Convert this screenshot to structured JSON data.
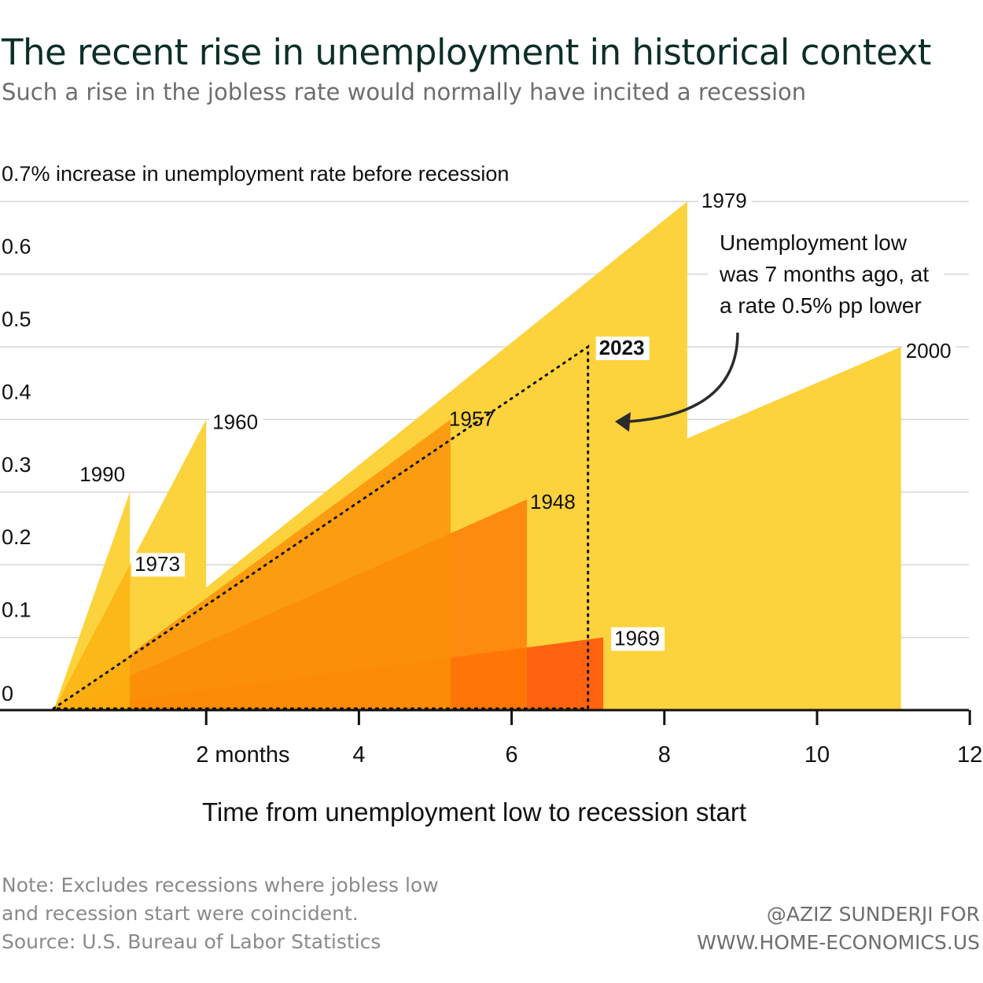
{
  "header": {
    "title": "The recent rise in unemployment in historical context",
    "subtitle": "Such a rise in the jobless rate would normally have incited a recession"
  },
  "chart_data": {
    "type": "area",
    "title": "The recent rise in unemployment in historical context",
    "subtitle": "Such a rise in the jobless rate would normally have incited a recession",
    "ylabel": "0.7% increase in unemployment rate before recession",
    "xlabel": "Time from unemployment low to recession start",
    "ylim": [
      0,
      0.7
    ],
    "xlim": [
      -0.8,
      12
    ],
    "yticks": [
      {
        "value": 0,
        "label": "0"
      },
      {
        "value": 0.1,
        "label": "0.1"
      },
      {
        "value": 0.2,
        "label": "0.2"
      },
      {
        "value": 0.3,
        "label": "0.3"
      },
      {
        "value": 0.4,
        "label": "0.4"
      },
      {
        "value": 0.5,
        "label": "0.5"
      },
      {
        "value": 0.6,
        "label": "0.6"
      },
      {
        "value": 0.7,
        "label": "0.7% increase in unemployment rate before recession"
      }
    ],
    "xticks": [
      {
        "value": 2,
        "label": "2 months"
      },
      {
        "value": 4,
        "label": "4"
      },
      {
        "value": 6,
        "label": "6"
      },
      {
        "value": 8,
        "label": "8"
      },
      {
        "value": 10,
        "label": "10"
      },
      {
        "value": 12,
        "label": "12"
      }
    ],
    "grid": true,
    "series": [
      {
        "name": "2000",
        "months": 11.1,
        "increase": 0.5,
        "color": "#fdd33d"
      },
      {
        "name": "1979",
        "months": 8.3,
        "increase": 0.7,
        "color": "#fdd33d"
      },
      {
        "name": "1960",
        "months": 2.0,
        "increase": 0.4,
        "color": "#fdd33d"
      },
      {
        "name": "1990",
        "months": 1.0,
        "increase": 0.3,
        "color": "#fdd33d"
      },
      {
        "name": "1969",
        "months": 7.2,
        "increase": 0.1,
        "color": "#ff4a06"
      },
      {
        "name": "1948",
        "months": 6.2,
        "increase": 0.29,
        "color": "#ff7a06"
      },
      {
        "name": "1957",
        "months": 5.2,
        "increase": 0.4,
        "color": "#fb9007"
      },
      {
        "name": "1973",
        "months": 1.0,
        "increase": 0.2,
        "color": "#fbb210"
      },
      {
        "name": "2023",
        "months": 7.0,
        "increase": 0.5,
        "color": "#111111",
        "style": "dotted"
      }
    ],
    "annotations": [
      {
        "target": "2023",
        "text_lines": [
          "Unemployment low",
          "was 7 months ago, at",
          "a rate 0.5% pp lower"
        ]
      }
    ]
  },
  "footer": {
    "note_line1": "Note: Excludes recessions where jobless low",
    "note_line2": "and recession start were coincident.",
    "source": "Source: U.S. Bureau of Labor Statistics",
    "credit_line1": "@AZIZ SUNDERJI FOR",
    "credit_line2": "WWW.HOME-ECONOMICS.US"
  }
}
